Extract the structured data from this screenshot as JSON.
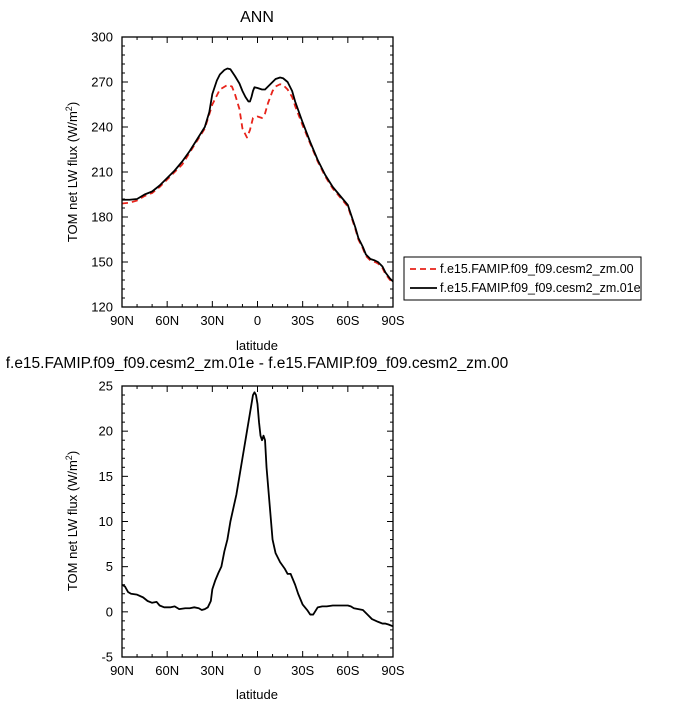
{
  "chart_data": [
    {
      "type": "line",
      "title": "ANN",
      "xlabel": "latitude",
      "ylabel": "TOM net LW flux (W/m",
      "ylabel_sup": "2",
      "ylabel_close": ")",
      "xlim": [
        90,
        -90
      ],
      "ylim": [
        120,
        300
      ],
      "x_ticks": [
        90,
        60,
        30,
        0,
        -30,
        -60,
        -90
      ],
      "x_tick_labels": [
        "90N",
        "60N",
        "30N",
        "0",
        "30S",
        "60S",
        "90S"
      ],
      "y_ticks": [
        120,
        150,
        180,
        210,
        240,
        270,
        300
      ],
      "y_tick_labels": [
        "120",
        "150",
        "180",
        "210",
        "240",
        "270",
        "300"
      ],
      "legend": "right",
      "series": [
        {
          "name": "f.e15.FAMIP.f09_f09.cesm2_zm.00",
          "color": "#e8231a",
          "dash": "dashed",
          "x": [
            90,
            85,
            80,
            75,
            70,
            65,
            60,
            55,
            50,
            45,
            40,
            35,
            30,
            25,
            20,
            17,
            15,
            12,
            10,
            7,
            5,
            3,
            0,
            -3,
            -5,
            -7,
            -10,
            -12,
            -15,
            -17,
            -20,
            -23,
            -25,
            -30,
            -35,
            -40,
            -45,
            -50,
            -55,
            -60,
            -62,
            -65,
            -67,
            -70,
            -72,
            -75,
            -78,
            -80,
            -83,
            -85,
            -88,
            -90
          ],
          "y": [
            189,
            189.5,
            191,
            194,
            196,
            200,
            205,
            210,
            215,
            223,
            231,
            239,
            255,
            265,
            268,
            267,
            262,
            252,
            239,
            233,
            238,
            246,
            247,
            246,
            249,
            256,
            264,
            267,
            268.5,
            268,
            265,
            260,
            254,
            241,
            229,
            217,
            207,
            199,
            193,
            187,
            181,
            172,
            165,
            159,
            154,
            151,
            150,
            149,
            146,
            142,
            138,
            137
          ]
        },
        {
          "name": "f.e15.FAMIP.f09_f09.cesm2_zm.01e",
          "color": "#000000",
          "dash": "solid",
          "x": [
            90,
            85,
            80,
            75,
            70,
            65,
            60,
            55,
            50,
            45,
            40,
            35,
            32,
            30,
            27,
            25,
            22,
            20,
            18,
            15,
            12,
            10,
            8,
            6,
            5,
            4,
            3,
            2,
            0,
            -3,
            -5,
            -7,
            -10,
            -12,
            -15,
            -17,
            -20,
            -23,
            -25,
            -30,
            -35,
            -40,
            -45,
            -50,
            -55,
            -60,
            -62,
            -65,
            -67,
            -70,
            -72,
            -75,
            -78,
            -80,
            -83,
            -85,
            -88,
            -90
          ],
          "y": [
            191.5,
            191.5,
            192,
            195,
            197,
            201,
            206,
            211,
            217,
            224,
            232,
            240,
            250,
            262,
            271,
            275,
            278,
            279,
            278.5,
            274,
            269,
            264,
            260,
            257,
            257,
            260,
            264,
            266.5,
            266,
            265,
            265,
            267,
            270,
            272,
            273,
            272.5,
            270,
            264,
            257,
            243,
            230,
            218,
            208,
            200,
            194,
            188,
            182,
            173,
            166,
            160,
            155,
            152,
            151,
            150,
            147,
            143,
            139,
            137
          ]
        }
      ]
    },
    {
      "type": "line",
      "title": "f.e15.FAMIP.f09_f09.cesm2_zm.01e - f.e15.FAMIP.f09_f09.cesm2_zm.00",
      "xlabel": "latitude",
      "ylabel": "TOM net LW flux (W/m",
      "ylabel_sup": "2",
      "ylabel_close": ")",
      "xlim": [
        90,
        -90
      ],
      "ylim": [
        -5,
        25
      ],
      "x_ticks": [
        90,
        60,
        30,
        0,
        -30,
        -60,
        -90
      ],
      "x_tick_labels": [
        "90N",
        "60N",
        "30N",
        "0",
        "30S",
        "60S",
        "90S"
      ],
      "y_ticks": [
        -5,
        0,
        5,
        10,
        15,
        20,
        25
      ],
      "y_tick_labels": [
        "-5",
        "0",
        "5",
        "10",
        "15",
        "20",
        "25"
      ],
      "series": [
        {
          "color": "#000000",
          "dash": "solid",
          "x": [
            90,
            88,
            86,
            84,
            80,
            76,
            73,
            70,
            67,
            65,
            62,
            58,
            55,
            52,
            48,
            45,
            42,
            39,
            37,
            35,
            33,
            31,
            30,
            28,
            26,
            24,
            22,
            20,
            18,
            16,
            14,
            12,
            10,
            9,
            8,
            7,
            6,
            5,
            4,
            3,
            2,
            1,
            0,
            -1,
            -2,
            -3,
            -4,
            -5,
            -6,
            -8,
            -10,
            -12,
            -15,
            -18,
            -20,
            -22,
            -25,
            -27,
            -30,
            -33,
            -35,
            -37,
            -40,
            -43,
            -46,
            -50,
            -55,
            -60,
            -62,
            -64,
            -67,
            -70,
            -73,
            -76,
            -80,
            -83,
            -85,
            -87,
            -90
          ],
          "y": [
            3,
            2.8,
            2.2,
            2,
            1.9,
            1.6,
            1.2,
            1.0,
            1.1,
            0.7,
            0.5,
            0.5,
            0.6,
            0.3,
            0.4,
            0.4,
            0.5,
            0.4,
            0.2,
            0.3,
            0.5,
            1.2,
            2.5,
            3.5,
            4.3,
            5,
            6.7,
            8,
            10,
            11.5,
            13,
            15,
            17,
            18,
            19,
            20,
            21,
            22,
            23,
            24,
            24.3,
            24,
            23,
            21,
            19.5,
            19,
            19.5,
            19,
            16,
            12,
            8,
            6.5,
            5.5,
            4.8,
            4.2,
            4.2,
            3,
            2,
            0.8,
            0.2,
            -0.3,
            -0.3,
            0.5,
            0.6,
            0.6,
            0.7,
            0.7,
            0.7,
            0.6,
            0.4,
            0.3,
            0.2,
            -0.3,
            -0.8,
            -1.1,
            -1.3,
            -1.3,
            -1.4,
            -1.6
          ]
        }
      ]
    }
  ]
}
